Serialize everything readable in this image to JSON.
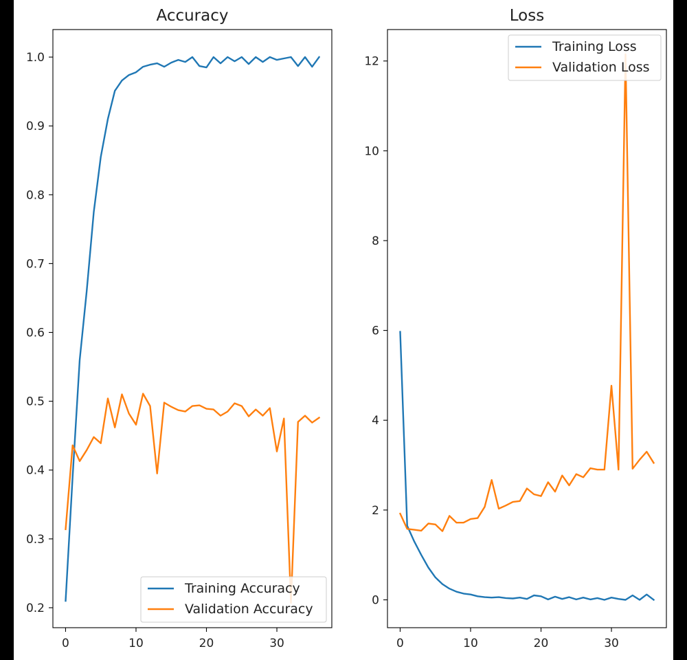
{
  "chart_data": [
    {
      "type": "line",
      "title": "Accuracy",
      "xlabel": "",
      "ylabel": "",
      "xlim": [
        -1.8,
        37.8
      ],
      "ylim": [
        0.171,
        1.04
      ],
      "xticks": [
        0,
        10,
        20,
        30
      ],
      "yticks": [
        0.2,
        0.3,
        0.4,
        0.5,
        0.6,
        0.7,
        0.8,
        0.9,
        1.0
      ],
      "xtick_labels": [
        "0",
        "10",
        "20",
        "30"
      ],
      "ytick_labels": [
        "0.2",
        "0.3",
        "0.4",
        "0.5",
        "0.6",
        "0.7",
        "0.8",
        "0.9",
        "1.0"
      ],
      "grid": false,
      "legend_position": "lower-right",
      "x": [
        0,
        1,
        2,
        3,
        4,
        5,
        6,
        7,
        8,
        9,
        10,
        11,
        12,
        13,
        14,
        15,
        16,
        17,
        18,
        19,
        20,
        21,
        22,
        23,
        24,
        25,
        26,
        27,
        28,
        29,
        30,
        31,
        32,
        33,
        34,
        35,
        36
      ],
      "series": [
        {
          "name": "Training Accuracy",
          "color": "#1f77b4",
          "values": [
            0.21,
            0.39,
            0.56,
            0.66,
            0.775,
            0.855,
            0.91,
            0.951,
            0.966,
            0.974,
            0.978,
            0.986,
            0.989,
            0.991,
            0.986,
            0.992,
            0.996,
            0.993,
            1.0,
            0.987,
            0.985,
            1.0,
            0.991,
            1.0,
            0.994,
            1.0,
            0.99,
            1.0,
            0.993,
            1.0,
            0.996,
            0.998,
            1.0,
            0.987,
            1.0,
            0.986,
            1.0
          ]
        },
        {
          "name": "Validation Accuracy",
          "color": "#ff7f0e",
          "values": [
            0.314,
            0.436,
            0.413,
            0.429,
            0.448,
            0.439,
            0.504,
            0.462,
            0.51,
            0.482,
            0.466,
            0.511,
            0.493,
            0.395,
            0.498,
            0.492,
            0.487,
            0.485,
            0.493,
            0.494,
            0.489,
            0.488,
            0.479,
            0.485,
            0.497,
            0.493,
            0.478,
            0.488,
            0.479,
            0.49,
            0.427,
            0.475,
            0.207,
            0.47,
            0.479,
            0.469,
            0.476
          ]
        }
      ]
    },
    {
      "type": "line",
      "title": "Loss",
      "xlabel": "",
      "ylabel": "",
      "xlim": [
        -1.8,
        37.8
      ],
      "ylim": [
        -0.62,
        12.7
      ],
      "xticks": [
        0,
        10,
        20,
        30
      ],
      "yticks": [
        0,
        2,
        4,
        6,
        8,
        10,
        12
      ],
      "xtick_labels": [
        "0",
        "10",
        "20",
        "30"
      ],
      "ytick_labels": [
        "0",
        "2",
        "4",
        "6",
        "8",
        "10",
        "12"
      ],
      "grid": false,
      "legend_position": "upper-right",
      "x": [
        0,
        1,
        2,
        3,
        4,
        5,
        6,
        7,
        8,
        9,
        10,
        11,
        12,
        13,
        14,
        15,
        16,
        17,
        18,
        19,
        20,
        21,
        22,
        23,
        24,
        25,
        26,
        27,
        28,
        29,
        30,
        31,
        32,
        33,
        34,
        35,
        36
      ],
      "series": [
        {
          "name": "Training Loss",
          "color": "#1f77b4",
          "values": [
            5.97,
            1.65,
            1.3,
            1.0,
            0.72,
            0.5,
            0.35,
            0.25,
            0.18,
            0.14,
            0.12,
            0.08,
            0.06,
            0.05,
            0.06,
            0.04,
            0.03,
            0.05,
            0.02,
            0.1,
            0.08,
            0.01,
            0.07,
            0.02,
            0.06,
            0.01,
            0.05,
            0.01,
            0.04,
            0.0,
            0.05,
            0.02,
            0.0,
            0.1,
            0.0,
            0.12,
            0.0
          ]
        },
        {
          "name": "Validation Loss",
          "color": "#ff7f0e",
          "values": [
            1.92,
            1.58,
            1.56,
            1.54,
            1.7,
            1.68,
            1.53,
            1.87,
            1.72,
            1.72,
            1.8,
            1.82,
            2.07,
            2.67,
            2.03,
            2.1,
            2.18,
            2.2,
            2.48,
            2.35,
            2.31,
            2.62,
            2.41,
            2.77,
            2.55,
            2.8,
            2.73,
            2.93,
            2.9,
            2.9,
            4.77,
            2.9,
            12.15,
            2.92,
            3.12,
            3.3,
            3.05
          ]
        }
      ]
    }
  ]
}
